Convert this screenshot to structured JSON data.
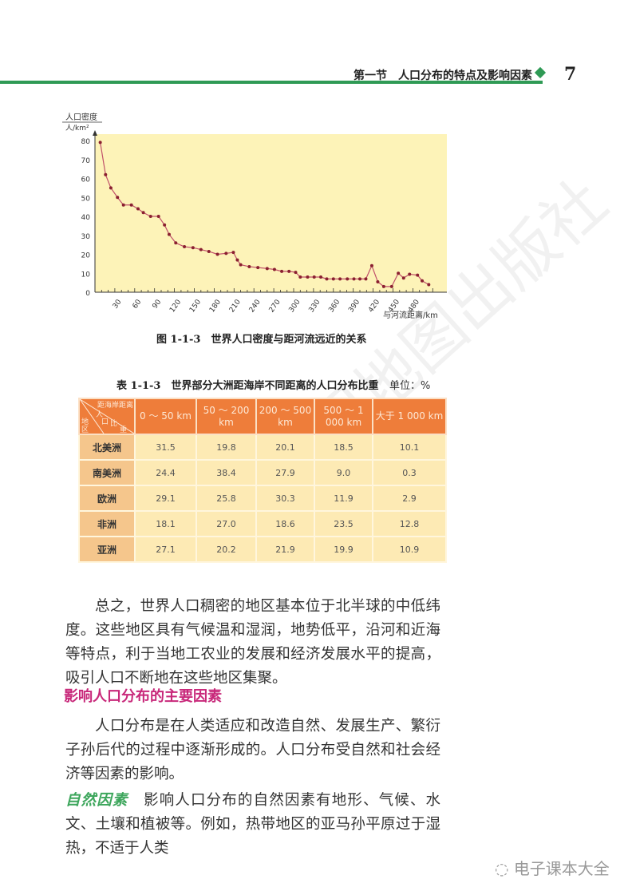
{
  "header": {
    "section_title": "第一节　人口分布的特点及影响因素",
    "page_number": "7",
    "accent_color": "#2f9a55"
  },
  "chart_data": {
    "type": "line",
    "title": "",
    "ylabel_top": "人口密度",
    "ylabel_bottom": "人/km²",
    "xlabel": "与河流距离/km",
    "ylim": [
      0,
      80
    ],
    "xlim": [
      0,
      517
    ],
    "yticks": [
      0,
      10,
      20,
      30,
      40,
      50,
      60,
      70,
      80
    ],
    "xticks": [
      30,
      60,
      90,
      120,
      150,
      180,
      210,
      240,
      270,
      300,
      330,
      360,
      390,
      420,
      450,
      480
    ],
    "grid": false,
    "background": "#fdf3b8",
    "line_color": "#c0506a",
    "marker_color": "#8a2030",
    "x": [
      8,
      16,
      24,
      34,
      43,
      55,
      65,
      73,
      84,
      96,
      105,
      112,
      122,
      135,
      148,
      160,
      172,
      185,
      198,
      209,
      215,
      220,
      233,
      246,
      260,
      271,
      282,
      293,
      303,
      310,
      321,
      331,
      341,
      350,
      360,
      370,
      381,
      391,
      400,
      409,
      418,
      427,
      436,
      448,
      458,
      466,
      475,
      487,
      494,
      504
    ],
    "y": [
      79,
      62,
      55,
      50,
      46,
      46,
      44,
      42,
      40,
      40,
      35.5,
      30.5,
      26,
      24,
      23.5,
      22.5,
      21.5,
      20,
      20.5,
      21,
      17,
      14.5,
      13.5,
      13,
      12.5,
      12,
      11,
      11,
      10.5,
      8,
      8,
      8,
      8,
      7,
      7,
      7,
      7,
      7,
      7,
      7,
      14,
      5.5,
      3,
      3,
      10,
      7.5,
      9.5,
      9,
      6,
      4
    ]
  },
  "figure_caption": "图 1-1-3　世界人口密度与距河流远近的关系",
  "table": {
    "caption": "表 1-1-3　世界部分大洲距海岸不同距离的人口分布比重",
    "unit": "单位：%",
    "corner": {
      "top": "距海岸距离",
      "mid1": "人",
      "mid2": "口",
      "bottom1": "比",
      "bottom2": "重",
      "left1": "地",
      "left2": "区"
    },
    "columns": [
      "0 ～ 50 km",
      "50 ～ 200 km",
      "200 ～ 500 km",
      "500 ～ 1 000 km",
      "大于 1 000 km"
    ],
    "rows": [
      {
        "region": "北美洲",
        "values": [
          "31.5",
          "19.8",
          "20.1",
          "18.5",
          "10.1"
        ]
      },
      {
        "region": "南美洲",
        "values": [
          "24.4",
          "38.4",
          "27.9",
          "9.0",
          "0.3"
        ]
      },
      {
        "region": "欧洲",
        "values": [
          "29.1",
          "25.8",
          "30.3",
          "11.9",
          "2.9"
        ]
      },
      {
        "region": "非洲",
        "values": [
          "18.1",
          "27.0",
          "18.6",
          "23.5",
          "12.8"
        ]
      },
      {
        "region": "亚洲",
        "values": [
          "27.1",
          "20.2",
          "21.9",
          "19.9",
          "10.9"
        ]
      }
    ]
  },
  "body": {
    "para1": "总之，世界人口稠密的地区基本位于北半球的中低纬度。这些地区具有气候温和湿润，地势低平，沿河和近海等特点，利于当地工农业的发展和经济发展水平的提高，吸引人口不断地在这些地区集聚。",
    "heading": "影响人口分布的主要因素",
    "para2": "人口分布是在人类适应和改造自然、发展生产、繁衍子孙后代的过程中逐渐形成的。人口分布受自然和社会经济等因素的影响。",
    "para3_label": "自然因素",
    "para3": "　影响人口分布的自然因素有地形、气候、水文、土壤和植被等。例如，热带地区的亚马孙平原过于湿热，不适于人类"
  },
  "watermark": "中国地图出版社",
  "logo_text": "电子课本大全"
}
